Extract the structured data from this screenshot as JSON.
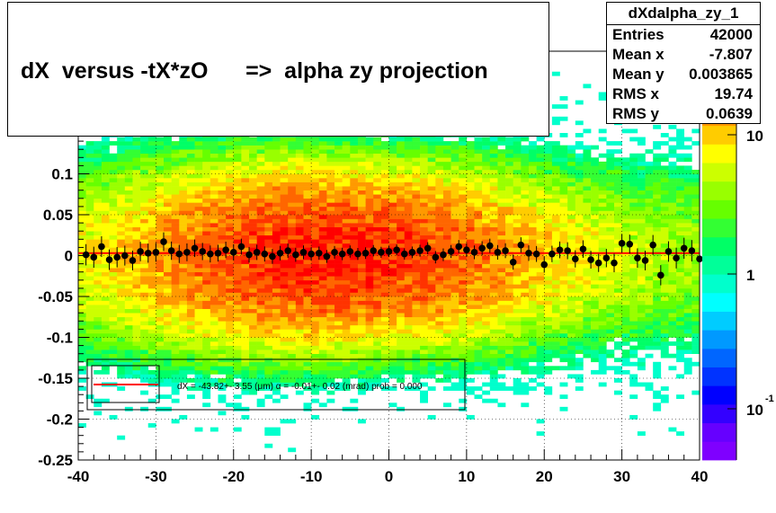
{
  "title": "dX  versus -tX*zO      =>  alpha zy projection",
  "stats": {
    "name": "dXdalpha_zy_1",
    "rows": [
      {
        "label": "Entries",
        "value": "42000"
      },
      {
        "label": "Mean x",
        "value": "-7.807"
      },
      {
        "label": "Mean y",
        "value": "0.003865"
      },
      {
        "label": "RMS x",
        "value": "19.74"
      },
      {
        "label": "RMS y",
        "value": "0.0639"
      }
    ]
  },
  "chart_data": {
    "type": "heatmap",
    "xlim": [
      -40,
      40
    ],
    "ylim": [
      -0.25,
      0.25
    ],
    "x_ticks": [
      "-40",
      "-30",
      "-20",
      "-10",
      "0",
      "10",
      "20",
      "30",
      "40"
    ],
    "y_ticks": [
      "-0.25",
      "-0.2",
      "-0.15",
      "-0.1",
      "-0.05",
      "0",
      "0.05",
      "0.1"
    ],
    "grid": true,
    "z_scale": "log",
    "z_ticks": [
      "10",
      "1",
      "10"
    ],
    "z_tick_exponent": "-1",
    "profile_points": {
      "x": [
        -39,
        -38,
        -37,
        -36,
        -35,
        -34,
        -33,
        -32,
        -31,
        -30,
        -29,
        -28,
        -27,
        -26,
        -25,
        -24,
        -23,
        -22,
        -21,
        -20,
        -19,
        -18,
        -17,
        -16,
        -15,
        -14,
        -13,
        -12,
        -11,
        -10,
        -9,
        -8,
        -7,
        -6,
        -5,
        -4,
        -3,
        -2,
        -1,
        0,
        1,
        2,
        3,
        4,
        5,
        6,
        7,
        8,
        9,
        10,
        11,
        12,
        13,
        14,
        15,
        16,
        17,
        18,
        19,
        20,
        21,
        22,
        23,
        24,
        25,
        26,
        27,
        28,
        29,
        30,
        31,
        32,
        33,
        34,
        35,
        36,
        37,
        38,
        39,
        40
      ],
      "y": [
        0.001,
        -0.002,
        0.011,
        -0.005,
        -0.002,
        0.0,
        -0.006,
        0.005,
        0.003,
        0.004,
        0.017,
        0.006,
        0.002,
        0.004,
        0.009,
        0.005,
        0.002,
        0.003,
        0.007,
        0.004,
        0.011,
        0.001,
        0.004,
        0.002,
        -0.001,
        0.003,
        0.006,
        0.001,
        0.004,
        0.002,
        0.003,
        -0.001,
        0.004,
        0.002,
        0.005,
        0.002,
        0.003,
        0.006,
        0.004,
        0.005,
        0.007,
        0.002,
        0.004,
        0.006,
        0.009,
        -0.002,
        0.001,
        0.005,
        0.011,
        0.007,
        0.004,
        0.009,
        0.012,
        0.004,
        0.006,
        -0.008,
        0.013,
        0.003,
        0.002,
        -0.011,
        0.002,
        0.007,
        0.006,
        -0.004,
        0.008,
        -0.005,
        -0.009,
        -0.003,
        -0.009,
        0.015,
        0.014,
        -0.003,
        -0.006,
        0.013,
        -0.024,
        0.005,
        -0.003,
        0.009,
        0.006,
        -0.004
      ]
    },
    "fit_line": {
      "x": [
        -40,
        40
      ],
      "y": [
        0.003,
        0.003
      ]
    },
    "legend": {
      "placement": "bottom-left",
      "text": "dX = -43.82+- 3.55 (μm) α =  -0.01+- 0.02 (mrad) prob = 0.000"
    },
    "colors": {
      "fit": "#ff0000",
      "points": "#000000"
    }
  }
}
